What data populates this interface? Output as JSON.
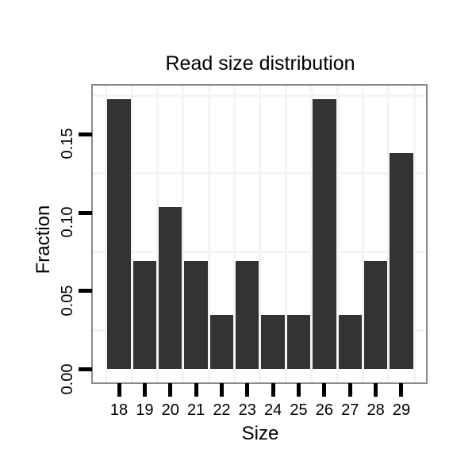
{
  "chart_data": {
    "type": "bar",
    "title": "Read size distribution",
    "xlabel": "Size",
    "ylabel": "Fraction",
    "categories": [
      "18",
      "19",
      "20",
      "21",
      "22",
      "23",
      "24",
      "25",
      "26",
      "27",
      "28",
      "29"
    ],
    "values": [
      0.1724,
      0.069,
      0.1034,
      0.069,
      0.0345,
      0.069,
      0.0345,
      0.0345,
      0.1724,
      0.0345,
      0.069,
      0.1379
    ],
    "y_tick_values": [
      0.0,
      0.05,
      0.1,
      0.15
    ],
    "y_tick_labels": [
      "0.00",
      "0.05",
      "0.10",
      "0.15"
    ],
    "ylim": [
      -0.0086,
      0.1811
    ],
    "grid": {
      "y_minor_values": [
        0.025,
        0.075,
        0.125,
        0.175
      ],
      "x_minor_between_categories": true
    },
    "legend": "none",
    "colors": {
      "bar_fill": "#333333",
      "panel_border": "#8a8a8a",
      "gridline": "#f4f4f4",
      "tick": "#000000",
      "text": "#000000",
      "background": "#ffffff"
    }
  }
}
